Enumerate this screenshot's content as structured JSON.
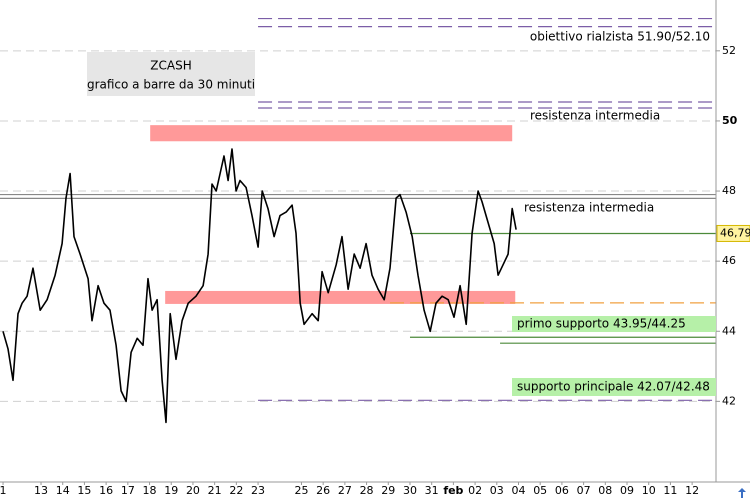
{
  "chart_data": {
    "type": "line",
    "title": "ZCASH",
    "subtitle": "grafico a barre da 30 minuti",
    "xlim": [
      -0.14,
      32.85
    ],
    "ylim": [
      39.7,
      53.45
    ],
    "xticks": [
      {
        "value": 0,
        "label": "1"
      },
      {
        "value": 1.75,
        "label": "13"
      },
      {
        "value": 2.75,
        "label": "14"
      },
      {
        "value": 3.75,
        "label": "15"
      },
      {
        "value": 4.75,
        "label": "16"
      },
      {
        "value": 5.75,
        "label": "17"
      },
      {
        "value": 6.75,
        "label": "18"
      },
      {
        "value": 7.75,
        "label": "19"
      },
      {
        "value": 8.75,
        "label": "20"
      },
      {
        "value": 9.75,
        "label": "21"
      },
      {
        "value": 10.75,
        "label": "22"
      },
      {
        "value": 11.75,
        "label": "23"
      },
      {
        "value": 13.75,
        "label": "25"
      },
      {
        "value": 14.75,
        "label": "26"
      },
      {
        "value": 15.75,
        "label": "27"
      },
      {
        "value": 16.75,
        "label": "28"
      },
      {
        "value": 17.75,
        "label": "29"
      },
      {
        "value": 18.75,
        "label": "30"
      },
      {
        "value": 19.75,
        "label": "31"
      },
      {
        "value": 20.75,
        "label": "feb"
      },
      {
        "value": 21.75,
        "label": "02"
      },
      {
        "value": 22.75,
        "label": "03"
      },
      {
        "value": 23.75,
        "label": "04"
      },
      {
        "value": 24.75,
        "label": "05"
      },
      {
        "value": 25.75,
        "label": "06"
      },
      {
        "value": 26.75,
        "label": "07"
      },
      {
        "value": 27.75,
        "label": "08"
      },
      {
        "value": 28.75,
        "label": "09"
      },
      {
        "value": 29.75,
        "label": "10"
      },
      {
        "value": 30.75,
        "label": "11"
      },
      {
        "value": 31.75,
        "label": "12"
      }
    ],
    "yticks": [
      42,
      44,
      46,
      48,
      50,
      52
    ],
    "grid": true,
    "series": [
      {
        "name": "ZCASH",
        "color": "#000000",
        "x": [
          0,
          0.23,
          0.46,
          0.69,
          0.88,
          1.11,
          1.38,
          1.71,
          2.03,
          2.4,
          2.72,
          2.9,
          3.09,
          3.27,
          3.55,
          3.92,
          4.1,
          4.38,
          4.65,
          4.93,
          5.21,
          5.44,
          5.67,
          5.9,
          6.18,
          6.45,
          6.68,
          6.87,
          7.1,
          7.33,
          7.51,
          7.7,
          7.97,
          8.25,
          8.53,
          8.89,
          9.22,
          9.45,
          9.63,
          9.82,
          10.0,
          10.18,
          10.37,
          10.55,
          10.74,
          10.92,
          11.2,
          11.47,
          11.75,
          11.94,
          12.21,
          12.49,
          12.76,
          13.04,
          13.32,
          13.5,
          13.69,
          13.87,
          14.24,
          14.52,
          14.7,
          14.98,
          15.35,
          15.62,
          15.9,
          16.18,
          16.45,
          16.73,
          17.0,
          17.28,
          17.56,
          17.83,
          18.11,
          18.29,
          18.57,
          18.85,
          19.12,
          19.4,
          19.68,
          19.95,
          20.23,
          20.51,
          20.78,
          21.06,
          21.34,
          21.61,
          21.89,
          22.07,
          22.35,
          22.63,
          22.81,
          23.04,
          23.27,
          23.46,
          23.64
        ],
        "values": [
          44.0,
          43.5,
          42.6,
          44.5,
          44.8,
          45.0,
          45.8,
          44.6,
          44.9,
          45.6,
          46.5,
          47.8,
          48.5,
          46.7,
          46.2,
          45.5,
          44.3,
          45.3,
          44.8,
          44.6,
          43.6,
          42.3,
          42.0,
          43.4,
          43.8,
          43.6,
          45.5,
          44.6,
          44.9,
          42.6,
          41.4,
          44.5,
          43.2,
          44.3,
          44.8,
          45.0,
          45.3,
          46.2,
          48.2,
          48.0,
          48.5,
          49.0,
          48.3,
          49.2,
          48.0,
          48.3,
          48.1,
          47.3,
          46.4,
          48.0,
          47.5,
          46.7,
          47.3,
          47.4,
          47.6,
          46.8,
          44.8,
          44.2,
          44.5,
          44.3,
          45.7,
          45.1,
          45.9,
          46.7,
          45.2,
          46.2,
          45.8,
          46.5,
          45.6,
          45.2,
          44.9,
          45.8,
          47.8,
          47.9,
          47.4,
          46.7,
          45.6,
          44.6,
          44.0,
          44.8,
          45.0,
          44.9,
          44.4,
          45.3,
          44.2,
          46.8,
          48.0,
          47.7,
          47.1,
          46.5,
          45.6,
          45.9,
          46.2,
          47.5,
          46.9
        ]
      }
    ],
    "last_price": {
      "value": 46.79,
      "label": "46,79"
    },
    "zones": [
      {
        "low": 49.42,
        "high": 49.88,
        "x": [
          6.78,
          23.46
        ],
        "color": "#ff9999"
      },
      {
        "low": 44.78,
        "high": 45.15,
        "x": [
          7.47,
          23.6
        ],
        "color": "#ff9999"
      }
    ],
    "levels": [
      {
        "value": 52.92,
        "x_from": 11.75,
        "color": "#7b5ea7",
        "style": "dashed"
      },
      {
        "value": 52.69,
        "x_from": 11.75,
        "color": "#7b5ea7",
        "style": "dashed"
      },
      {
        "value": 50.54,
        "x_from": 11.75,
        "color": "#7b5ea7",
        "style": "dashed"
      },
      {
        "value": 50.37,
        "x_from": 11.75,
        "color": "#7b5ea7",
        "style": "dashed"
      },
      {
        "value": 47.9,
        "x_from": -0.14,
        "color": "#888888",
        "style": "solid"
      },
      {
        "value": 47.79,
        "x_from": -0.14,
        "color": "#888888",
        "style": "solid"
      },
      {
        "value": 46.79,
        "x_from": 18.75,
        "color": "#4c8a3a",
        "style": "solid"
      },
      {
        "value": 44.81,
        "x_from": 17.83,
        "color": "#f0a040",
        "style": "dashed"
      },
      {
        "value": 43.83,
        "x_from": 18.75,
        "color": "#4c8a3a",
        "style": "solid"
      },
      {
        "value": 43.66,
        "x_from": 22.9,
        "color": "#4c8a3a",
        "style": "solid"
      },
      {
        "value": 42.03,
        "x_from": 11.75,
        "color": "#7b5ea7",
        "style": "dashed"
      }
    ],
    "annotations": [
      "obiettivo rialzista 51.90/52.10",
      "resistenza intermedia",
      "resistenza intermedia",
      "primo supporto 43.95/44.25",
      "supporto principale 42.07/42.48"
    ]
  }
}
